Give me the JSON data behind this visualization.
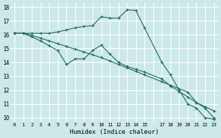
{
  "xlabel": "Humidex (Indice chaleur)",
  "bg_color": "#cce8e8",
  "grid_color": "#ffffff",
  "line_color": "#1e6b5e",
  "xlim": [
    -0.5,
    23.5
  ],
  "ylim": [
    9.7,
    18.3
  ],
  "line1_x": [
    0,
    1,
    2,
    3,
    4,
    5,
    6,
    7,
    8,
    9,
    10,
    11,
    12,
    13,
    14,
    15,
    17,
    18,
    19,
    20,
    21,
    22,
    23
  ],
  "line1_y": [
    16.1,
    16.1,
    16.1,
    16.1,
    16.1,
    16.2,
    16.35,
    16.5,
    16.6,
    16.65,
    17.3,
    17.2,
    17.2,
    17.8,
    17.75,
    16.5,
    14.0,
    13.1,
    12.0,
    11.0,
    10.7,
    10.0,
    9.9
  ],
  "line2_x": [
    0,
    1,
    2,
    3,
    4,
    5,
    6,
    7,
    8,
    9,
    10,
    11,
    12,
    13,
    14,
    15,
    17,
    18,
    19,
    20,
    21,
    22,
    23
  ],
  "line2_y": [
    16.1,
    16.1,
    15.85,
    15.55,
    15.2,
    14.85,
    13.85,
    14.25,
    14.25,
    14.85,
    15.25,
    14.6,
    14.0,
    13.7,
    13.5,
    13.3,
    12.8,
    12.3,
    11.9,
    11.5,
    11.1,
    10.8,
    10.5
  ],
  "line3_x": [
    0,
    1,
    2,
    3,
    4,
    5,
    6,
    7,
    8,
    9,
    10,
    11,
    12,
    13,
    14,
    15,
    17,
    18,
    19,
    20,
    21,
    22,
    23
  ],
  "line3_y": [
    16.1,
    16.1,
    15.95,
    15.75,
    15.55,
    15.35,
    15.15,
    14.95,
    14.75,
    14.55,
    14.35,
    14.1,
    13.85,
    13.6,
    13.35,
    13.1,
    12.6,
    12.35,
    12.1,
    11.85,
    11.1,
    10.7,
    10.0
  ],
  "xticks": [
    0,
    1,
    2,
    3,
    4,
    5,
    6,
    7,
    8,
    9,
    10,
    11,
    12,
    13,
    14,
    15,
    16,
    17,
    18,
    19,
    20,
    21,
    22,
    23
  ],
  "xtick_labels": [
    "0",
    "1",
    "2",
    "3",
    "4",
    "5",
    "6",
    "7",
    "8",
    "9",
    "10",
    "11",
    "12",
    "13",
    "14",
    "15",
    "",
    "17",
    "18",
    "19",
    "20",
    "21",
    "22",
    "23"
  ],
  "yticks": [
    10,
    11,
    12,
    13,
    14,
    15,
    16,
    17,
    18
  ],
  "ytick_labels": [
    "10",
    "11",
    "12",
    "13",
    "14",
    "15",
    "16",
    "17",
    "18"
  ]
}
